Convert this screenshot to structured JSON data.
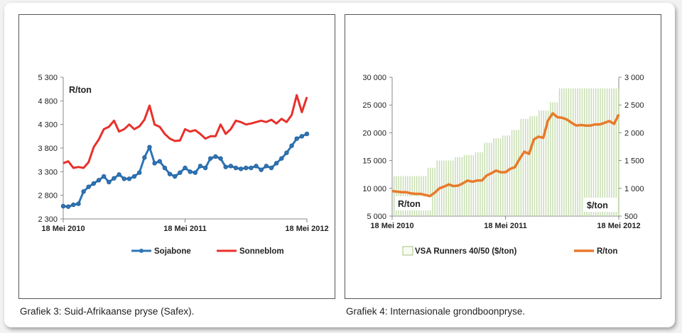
{
  "captions": {
    "left": "Grafiek 3: Suid-Afrikaanse pryse (Safex).",
    "right": "Grafiek 4: Internasionale grondboonpryse."
  },
  "chart_data": [
    {
      "type": "line",
      "title": "",
      "unit_label": "R/ton",
      "x_labels": [
        "18 Mei 2010",
        "18 Mei 2011",
        "18 Mei 2012"
      ],
      "ylim": [
        2300,
        5300
      ],
      "yticks": [
        2300,
        2800,
        3300,
        3800,
        4300,
        4800,
        5300
      ],
      "ytick_labels": [
        "2 300",
        "2 800",
        "3 300",
        "3 800",
        "4 300",
        "4 800",
        "5 300"
      ],
      "legend_position": "bottom",
      "x_note": "x values are months since 18 Mei 2010 (0 = 18 Mei 2010, 24 = 18 Mei 2012)",
      "series": [
        {
          "name": "Sojabone",
          "color": "#2e75b6",
          "marker": "circle",
          "x": [
            0,
            0.5,
            1,
            1.5,
            2,
            2.5,
            3,
            3.5,
            4,
            4.5,
            5,
            5.5,
            6,
            6.5,
            7,
            7.5,
            8,
            8.5,
            9,
            9.5,
            10,
            10.5,
            11,
            11.5,
            12,
            12.5,
            13,
            13.5,
            14,
            14.5,
            15,
            15.5,
            16,
            16.5,
            17,
            17.5,
            18,
            18.5,
            19,
            19.5,
            20,
            20.5,
            21,
            21.5,
            22,
            22.5,
            23,
            23.5,
            24
          ],
          "values": [
            2570,
            2560,
            2600,
            2620,
            2880,
            2980,
            3050,
            3120,
            3200,
            3080,
            3160,
            3240,
            3150,
            3150,
            3200,
            3280,
            3600,
            3820,
            3480,
            3520,
            3380,
            3250,
            3200,
            3280,
            3380,
            3300,
            3280,
            3420,
            3380,
            3580,
            3620,
            3580,
            3400,
            3420,
            3380,
            3360,
            3380,
            3380,
            3420,
            3340,
            3420,
            3380,
            3480,
            3580,
            3700,
            3850,
            4000,
            4050,
            4100
          ]
        },
        {
          "name": "Sonneblom",
          "color": "#e8302a",
          "marker": "none",
          "x": [
            0,
            0.5,
            1,
            1.5,
            2,
            2.5,
            3,
            3.5,
            4,
            4.5,
            5,
            5.5,
            6,
            6.5,
            7,
            7.5,
            8,
            8.5,
            9,
            9.5,
            10,
            10.5,
            11,
            11.5,
            12,
            12.5,
            13,
            13.5,
            14,
            14.5,
            15,
            15.5,
            16,
            16.5,
            17,
            17.5,
            18,
            18.5,
            19,
            19.5,
            20,
            20.5,
            21,
            21.5,
            22,
            22.5,
            23,
            23.5,
            24
          ],
          "values": [
            3480,
            3520,
            3380,
            3400,
            3380,
            3500,
            3820,
            3980,
            4200,
            4250,
            4380,
            4150,
            4200,
            4300,
            4200,
            4260,
            4400,
            4700,
            4300,
            4250,
            4100,
            4000,
            3950,
            3960,
            4200,
            4150,
            4180,
            4100,
            4000,
            4050,
            4050,
            4300,
            4100,
            4200,
            4380,
            4350,
            4300,
            4320,
            4350,
            4380,
            4350,
            4400,
            4320,
            4420,
            4350,
            4500,
            4920,
            4560,
            4880
          ]
        }
      ]
    },
    {
      "type": "bar+line",
      "title": "",
      "x_labels": [
        "18 Mei 2010",
        "18 Mei 2011",
        "18 Mei 2012"
      ],
      "ylim_left": [
        5000,
        30000
      ],
      "yticks_left": [
        5000,
        10000,
        15000,
        20000,
        25000,
        30000
      ],
      "ytick_labels_left": [
        "5 000",
        "10 000",
        "15 000",
        "20 000",
        "25 000",
        "30 000"
      ],
      "ylim_right": [
        500,
        3000
      ],
      "yticks_right": [
        500,
        1000,
        1500,
        2000,
        2500,
        3000
      ],
      "ytick_labels_right": [
        "500",
        "1 000",
        "1 500",
        "2 000",
        "2 500",
        "3 000"
      ],
      "unit_left": "R/ton",
      "unit_right": "$/ton",
      "legend_position": "bottom",
      "x_note": "x values are months since 18 Mei 2010 (0 = 18 Mei 2010, 24 = 18 Mei 2012)",
      "series": [
        {
          "name": "VSA Runners 40/50 ($/ton)",
          "type": "bar",
          "axis": "right",
          "color": "#c5dcae",
          "x": [
            0,
            1,
            2,
            3,
            4,
            5,
            6,
            7,
            8,
            9,
            10,
            11,
            12,
            13,
            14,
            15,
            16,
            17,
            18,
            19,
            20,
            21,
            22,
            23,
            24
          ],
          "values": [
            1220,
            1220,
            1220,
            1220,
            1370,
            1500,
            1500,
            1560,
            1600,
            1650,
            1820,
            1900,
            1950,
            2050,
            2250,
            2300,
            2400,
            2550,
            2800,
            2800,
            2800,
            2800,
            2800,
            2800,
            2800
          ]
        },
        {
          "name": "R/ton",
          "type": "line",
          "axis": "left",
          "color": "#e87a2a",
          "x": [
            0,
            0.5,
            1,
            1.5,
            2,
            2.5,
            3,
            3.5,
            4,
            4.5,
            5,
            5.5,
            6,
            6.5,
            7,
            7.5,
            8,
            8.5,
            9,
            9.5,
            10,
            10.5,
            11,
            11.5,
            12,
            12.5,
            13,
            13.5,
            14,
            14.5,
            15,
            15.5,
            16,
            16.5,
            17,
            17.5,
            18,
            18.5,
            19,
            19.5,
            20,
            20.5,
            21,
            21.5,
            22,
            22.5,
            23,
            23.5,
            24
          ],
          "values": [
            9500,
            9400,
            9300,
            9300,
            9100,
            9000,
            9000,
            8800,
            8600,
            9200,
            10000,
            10300,
            10700,
            10400,
            10500,
            10900,
            11400,
            11200,
            11400,
            11400,
            12300,
            12700,
            13200,
            12900,
            12900,
            13500,
            13800,
            15300,
            16600,
            16200,
            18800,
            19300,
            19100,
            22200,
            23500,
            22800,
            22700,
            22400,
            21800,
            21300,
            21400,
            21300,
            21300,
            21500,
            21500,
            21800,
            22100,
            21600,
            23300
          ]
        }
      ]
    }
  ]
}
